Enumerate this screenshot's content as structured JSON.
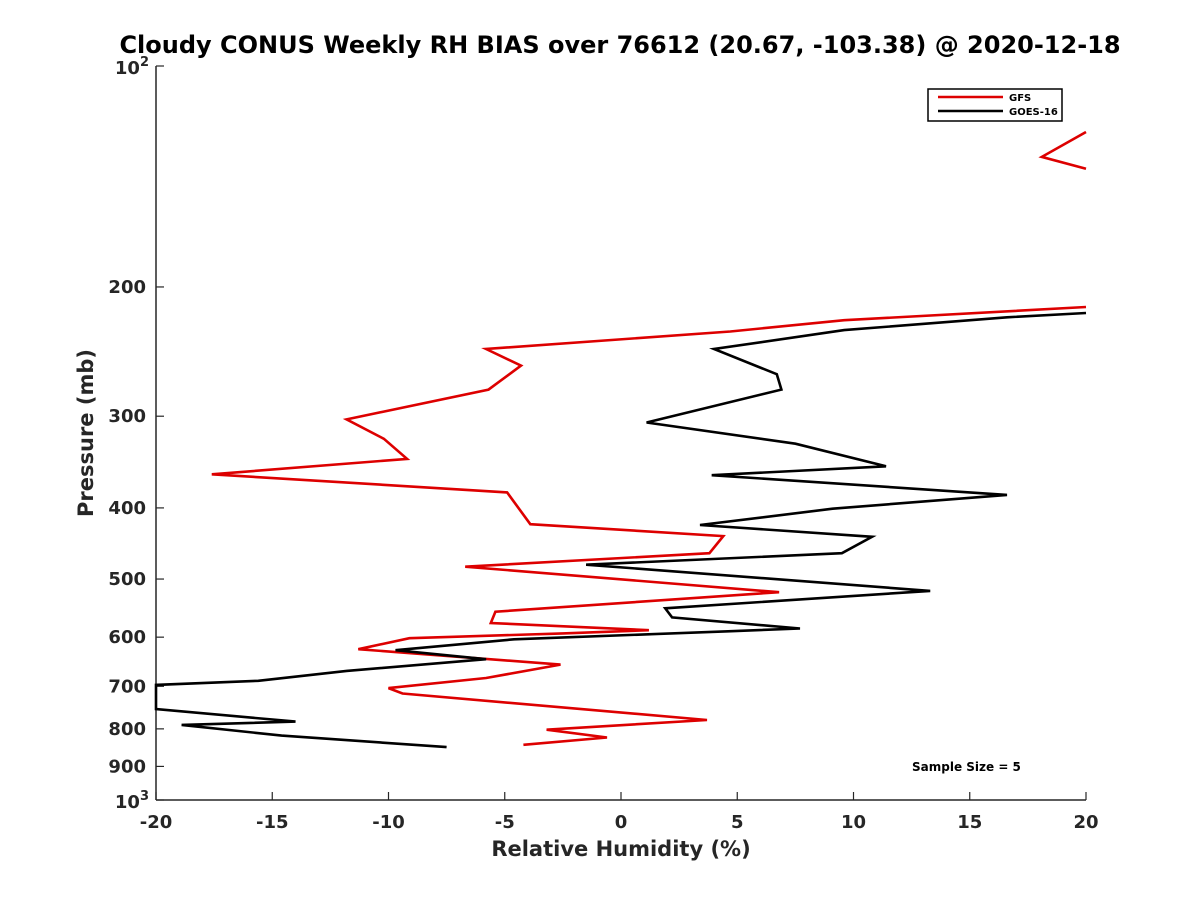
{
  "chart_data": {
    "type": "line",
    "title": "Cloudy CONUS Weekly RH BIAS over 76612 (20.67, -103.38) @ 2020-12-18",
    "xlabel": "Relative Humidity (%)",
    "ylabel": "Pressure (mb)",
    "xlim": [
      -20,
      20
    ],
    "ylim": [
      100,
      1000
    ],
    "yscale": "log",
    "y_reversed": true,
    "xticks": [
      -20,
      -15,
      -10,
      -5,
      0,
      5,
      10,
      15,
      20
    ],
    "yticks": [
      {
        "value": 200,
        "label": "200"
      },
      {
        "value": 300,
        "label": "300"
      },
      {
        "value": 400,
        "label": "400"
      },
      {
        "value": 500,
        "label": "500"
      },
      {
        "value": 600,
        "label": "600"
      },
      {
        "value": 700,
        "label": "700"
      },
      {
        "value": 800,
        "label": "800"
      },
      {
        "value": 900,
        "label": "900"
      }
    ],
    "ytick_ends": [
      {
        "value": 100,
        "base": "10",
        "exp": "2"
      },
      {
        "value": 1000,
        "base": "10",
        "exp": "3"
      }
    ],
    "legend_position": "top-right",
    "annotation": "Sample Size = 5",
    "series": [
      {
        "name": "GFS",
        "color": "#dd0000",
        "points": [
          [
            20.0,
            123
          ],
          [
            18.1,
            133
          ],
          [
            20.0,
            138
          ],
          [
            20.0,
            213
          ],
          [
            9.6,
            222
          ],
          [
            4.7,
            230
          ],
          [
            -5.8,
            243
          ],
          [
            -4.3,
            256
          ],
          [
            -5.7,
            276
          ],
          [
            -11.8,
            303
          ],
          [
            -10.2,
            322
          ],
          [
            -9.2,
            343
          ],
          [
            -17.6,
            360
          ],
          [
            -4.9,
            381
          ],
          [
            -3.9,
            421
          ],
          [
            4.4,
            437
          ],
          [
            3.8,
            461
          ],
          [
            -6.7,
            481
          ],
          [
            6.8,
            521
          ],
          [
            -5.4,
            554
          ],
          [
            -5.6,
            574
          ],
          [
            1.2,
            587
          ],
          [
            -2.5,
            593
          ],
          [
            -9.1,
            602
          ],
          [
            -11.3,
            623
          ],
          [
            -2.6,
            654
          ],
          [
            -5.8,
            682
          ],
          [
            -10.0,
            704
          ],
          [
            -9.4,
            716
          ],
          [
            3.7,
            778
          ],
          [
            -3.2,
            802
          ],
          [
            -0.6,
            822
          ],
          [
            -4.2,
            841
          ]
        ]
      },
      {
        "name": "GOES-16",
        "color": "#000000",
        "points": [
          [
            20.0,
            217
          ],
          [
            16.6,
            220
          ],
          [
            9.6,
            229
          ],
          [
            4.0,
            243
          ],
          [
            6.7,
            263
          ],
          [
            6.9,
            276
          ],
          [
            1.1,
            306
          ],
          [
            7.5,
            327
          ],
          [
            11.4,
            351
          ],
          [
            3.9,
            361
          ],
          [
            16.6,
            384
          ],
          [
            9.1,
            401
          ],
          [
            3.4,
            422
          ],
          [
            10.8,
            438
          ],
          [
            9.5,
            461
          ],
          [
            -1.5,
            478
          ],
          [
            13.3,
            519
          ],
          [
            1.9,
            548
          ],
          [
            2.2,
            564
          ],
          [
            7.7,
            584
          ],
          [
            4.6,
            589
          ],
          [
            -4.6,
            604
          ],
          [
            -9.7,
            625
          ],
          [
            -5.8,
            643
          ],
          [
            -11.8,
            667
          ],
          [
            -15.6,
            688
          ],
          [
            -20.0,
            697
          ],
          [
            -20.0,
            752
          ],
          [
            -14.0,
            782
          ],
          [
            -18.9,
            790
          ],
          [
            -14.6,
            817
          ],
          [
            -7.5,
            847
          ]
        ]
      }
    ]
  }
}
